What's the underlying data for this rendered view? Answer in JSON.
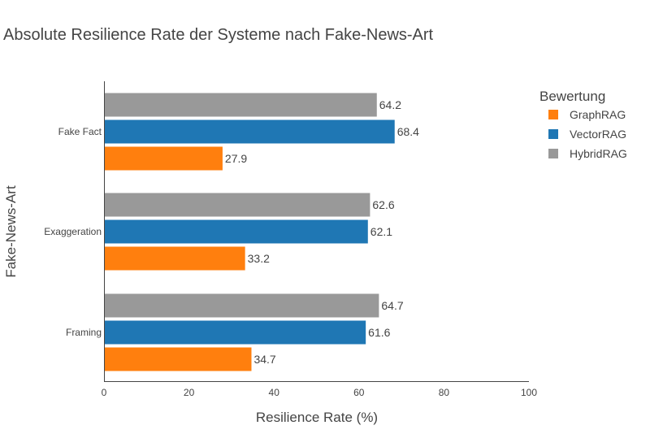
{
  "chart_data": {
    "type": "bar",
    "orientation": "horizontal",
    "title": "Absolute Resilience Rate der Systeme nach Fake-News-Art",
    "xlabel": "Resilience Rate (%)",
    "ylabel": "Fake-News-Art",
    "xlim": [
      0,
      100
    ],
    "xticks": [
      0,
      20,
      40,
      60,
      80,
      100
    ],
    "categories": [
      "Fake Fact",
      "Exaggeration",
      "Framing"
    ],
    "legend_title": "Bewertung",
    "legend_position": "top-right",
    "grid": false,
    "series": [
      {
        "name": "GraphRAG",
        "color": "#ff7f0e",
        "values": [
          27.9,
          33.2,
          34.7
        ]
      },
      {
        "name": "VectorRAG",
        "color": "#1f77b4",
        "values": [
          68.4,
          62.1,
          61.6
        ]
      },
      {
        "name": "HybridRAG",
        "color": "#999999",
        "values": [
          64.2,
          62.6,
          64.7
        ]
      }
    ]
  }
}
